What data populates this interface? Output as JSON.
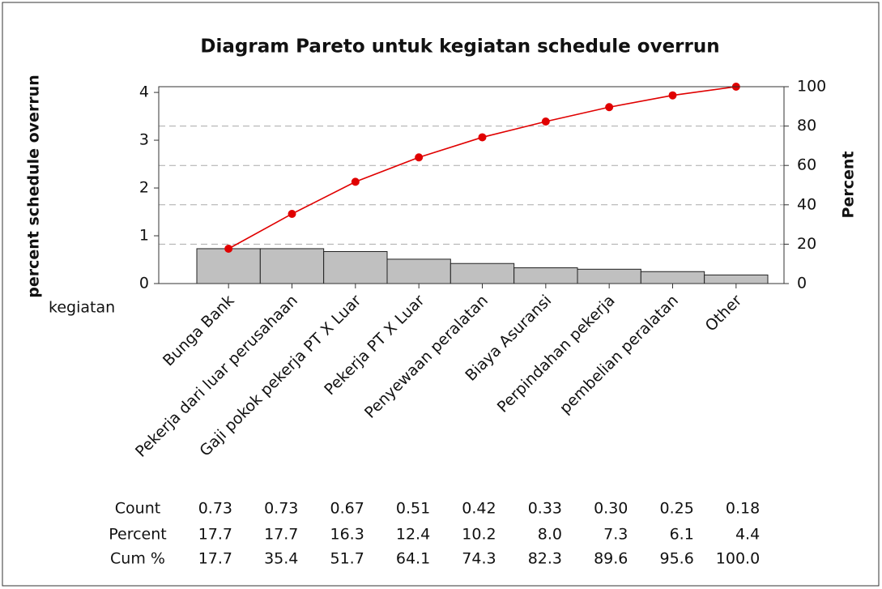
{
  "chart_data": {
    "type": "pareto",
    "title": "Diagram Pareto untuk kegiatan schedule overrun",
    "ylabel": "percent schedule overrun",
    "y2label": "Percent",
    "xlabel": "kegiatan",
    "categories": [
      "Bunga Bank",
      "Pekerja dari luar perusahaan",
      "Gaji pokok pekerja PT X Luar",
      "Pekerja PT X Luar",
      "Penyewaan peralatan",
      "Biaya Asuransi",
      "Perpindahan pekerja",
      "pembelian peralatan",
      "Other"
    ],
    "series": [
      {
        "name": "Count",
        "color": "#c0c0c0",
        "values": [
          0.73,
          0.73,
          0.67,
          0.51,
          0.42,
          0.33,
          0.3,
          0.25,
          0.18
        ],
        "value_labels": [
          "0.73",
          "0.73",
          "0.67",
          "0.51",
          "0.42",
          "0.33",
          "0.30",
          "0.25",
          "0.18"
        ]
      },
      {
        "name": "Percent",
        "values": [
          17.7,
          17.7,
          16.3,
          12.4,
          10.2,
          8.0,
          7.3,
          6.1,
          4.4
        ],
        "value_labels": [
          "17.7",
          "17.7",
          "16.3",
          "12.4",
          "10.2",
          "8.0",
          "7.3",
          "6.1",
          "4.4"
        ]
      },
      {
        "name": "Cum %",
        "color": "#e00000",
        "axis": "y2",
        "values": [
          17.7,
          35.4,
          51.7,
          64.1,
          74.3,
          82.3,
          89.6,
          95.6,
          100.0
        ],
        "value_labels": [
          "17.7",
          "35.4",
          "51.7",
          "64.1",
          "74.3",
          "82.3",
          "89.6",
          "95.6",
          "100.0"
        ]
      }
    ],
    "ylim": [
      0,
      4.12
    ],
    "yticks": [
      0,
      1,
      2,
      3,
      4
    ],
    "y2lim": [
      0,
      100
    ],
    "y2ticks": [
      0,
      20,
      40,
      60,
      80,
      100
    ],
    "grid": true
  }
}
